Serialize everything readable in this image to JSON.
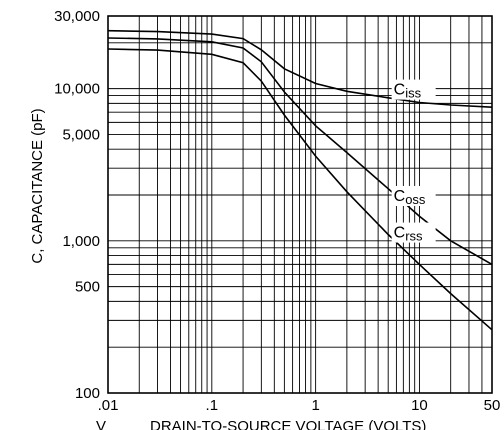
{
  "chart_data": {
    "type": "line",
    "x_scale": "log",
    "y_scale": "log",
    "xlim": [
      0.01,
      50
    ],
    "ylim": [
      100,
      30000
    ],
    "grid": true,
    "x_tick_labels": [
      {
        "value": 0.01,
        "label": ".01"
      },
      {
        "value": 0.1,
        "label": ".1"
      },
      {
        "value": 1,
        "label": "1"
      },
      {
        "value": 10,
        "label": "10"
      },
      {
        "value": 50,
        "label": "50"
      }
    ],
    "y_tick_labels": [
      {
        "value": 30000,
        "label": "30,000"
      },
      {
        "value": 10000,
        "label": "10,000"
      },
      {
        "value": 5000,
        "label": "5,000"
      },
      {
        "value": 1000,
        "label": "1,000"
      },
      {
        "value": 500,
        "label": "500"
      },
      {
        "value": 100,
        "label": "100"
      }
    ],
    "xlabel_prefix": "V",
    "xlabel": "DRAIN-TO-SOURCE VOLTAGE (VOLTS)",
    "ylabel": "C, CAPACITANCE (pF)",
    "series": [
      {
        "name": "Ciss",
        "label_main": "C",
        "label_sub": "iss",
        "points": [
          [
            0.01,
            24000
          ],
          [
            0.03,
            23700
          ],
          [
            0.1,
            22800
          ],
          [
            0.2,
            21300
          ],
          [
            0.3,
            18000
          ],
          [
            0.5,
            13500
          ],
          [
            1,
            10800
          ],
          [
            2,
            9600
          ],
          [
            5,
            8700
          ],
          [
            10,
            8100
          ],
          [
            20,
            7800
          ],
          [
            50,
            7550
          ]
        ]
      },
      {
        "name": "Coss",
        "label_main": "C",
        "label_sub": "oss",
        "points": [
          [
            0.01,
            21500
          ],
          [
            0.03,
            21200
          ],
          [
            0.1,
            20300
          ],
          [
            0.2,
            18500
          ],
          [
            0.3,
            15000
          ],
          [
            0.5,
            9500
          ],
          [
            1,
            5700
          ],
          [
            2,
            3800
          ],
          [
            5,
            2200
          ],
          [
            10,
            1450
          ],
          [
            20,
            1000
          ],
          [
            50,
            700
          ]
        ]
      },
      {
        "name": "Crss",
        "label_main": "C",
        "label_sub": "rss",
        "points": [
          [
            0.01,
            18200
          ],
          [
            0.03,
            17900
          ],
          [
            0.1,
            16800
          ],
          [
            0.2,
            14800
          ],
          [
            0.3,
            11200
          ],
          [
            0.5,
            6700
          ],
          [
            1,
            3600
          ],
          [
            2,
            2100
          ],
          [
            5,
            1100
          ],
          [
            10,
            700
          ],
          [
            20,
            450
          ],
          [
            50,
            260
          ]
        ]
      }
    ]
  }
}
